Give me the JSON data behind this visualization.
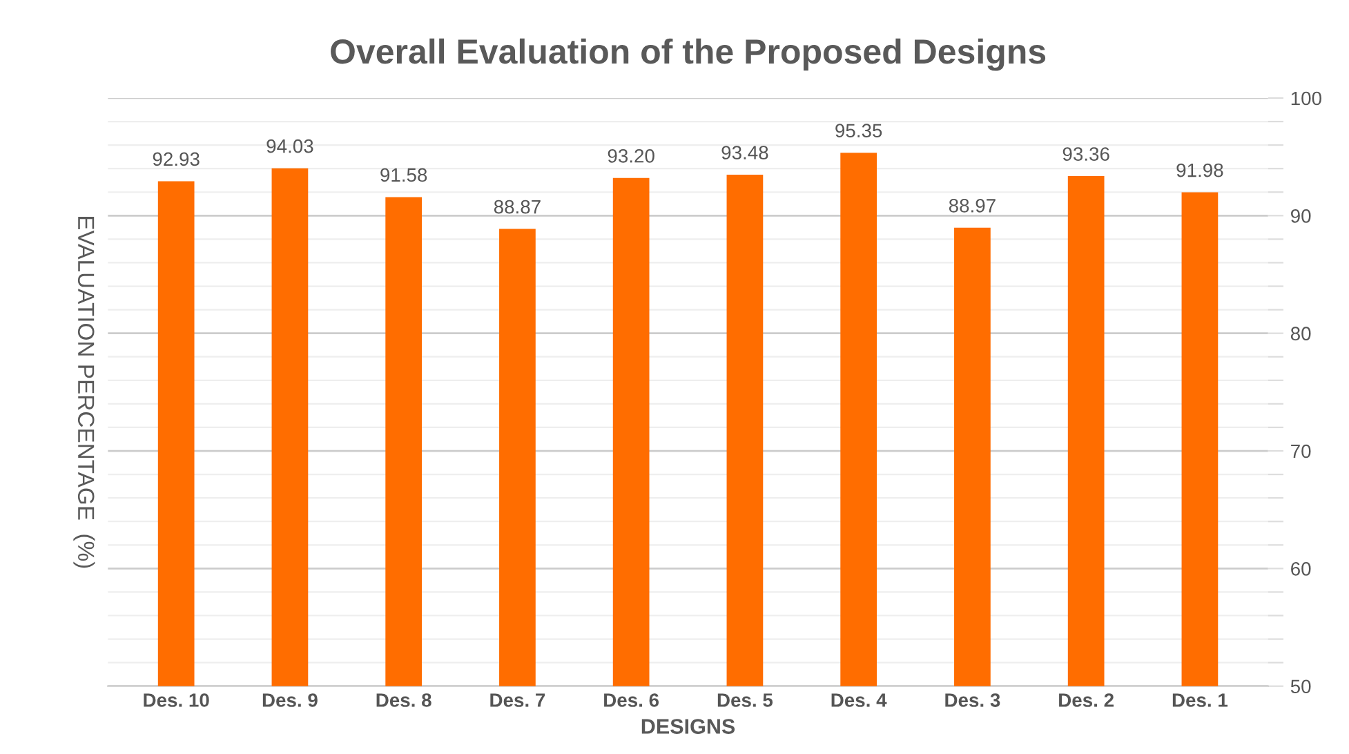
{
  "chart_data": {
    "type": "bar",
    "title": "Overall Evaluation of the Proposed Designs",
    "xlabel": "DESIGNS",
    "ylabel": "EVALUATION PERCENTAGE  (%)",
    "categories": [
      "Des. 10",
      "Des. 9",
      "Des. 8",
      "Des. 7",
      "Des. 6",
      "Des. 5",
      "Des. 4",
      "Des. 3",
      "Des. 2",
      "Des. 1"
    ],
    "values": [
      92.93,
      94.03,
      91.58,
      88.87,
      93.2,
      93.48,
      95.35,
      88.97,
      93.36,
      91.98
    ],
    "value_labels": [
      "92.93",
      "94.03",
      "91.58",
      "88.87",
      "93.20",
      "93.48",
      "95.35",
      "88.97",
      "93.36",
      "91.98"
    ],
    "color": "#ff6d00",
    "ylim": [
      50,
      100
    ],
    "yticks": [
      50,
      {
        "value": 52,
        "label": null
      },
      {
        "value": 54,
        "label": null
      },
      {
        "value": 56,
        "label": null
      },
      {
        "value": 58,
        "label": null
      },
      60,
      {
        "value": 62,
        "label": null
      },
      {
        "value": 64,
        "label": null
      },
      {
        "value": 66,
        "label": null
      },
      {
        "value": 68,
        "label": null
      },
      70,
      {
        "value": 72,
        "label": null
      },
      {
        "value": 74,
        "label": null
      },
      {
        "value": 76,
        "label": null
      },
      {
        "value": 78,
        "label": null
      },
      80,
      {
        "value": 82,
        "label": null
      },
      {
        "value": 84,
        "label": null
      },
      {
        "value": 86,
        "label": null
      },
      {
        "value": 88,
        "label": null
      },
      90,
      {
        "value": 92,
        "label": null
      },
      {
        "value": 94,
        "label": null
      },
      {
        "value": 96,
        "label": null
      },
      {
        "value": 98,
        "label": null
      },
      100
    ],
    "grid": "y",
    "legend": false
  }
}
